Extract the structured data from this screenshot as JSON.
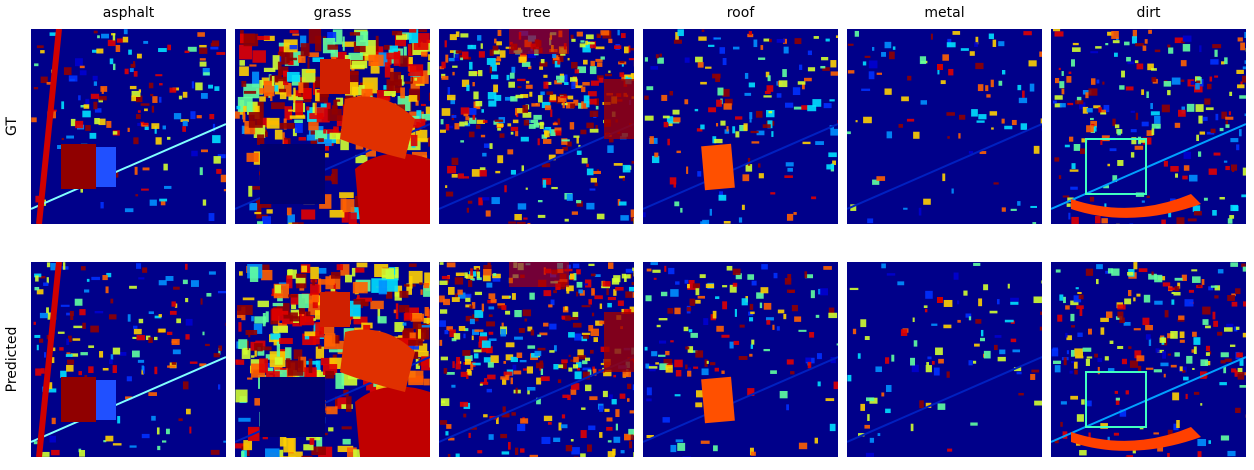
{
  "columns": [
    "asphalt",
    "grass",
    "tree",
    "roof",
    "metal",
    "dirt"
  ],
  "rows": [
    "GT",
    "Predicted"
  ]
}
